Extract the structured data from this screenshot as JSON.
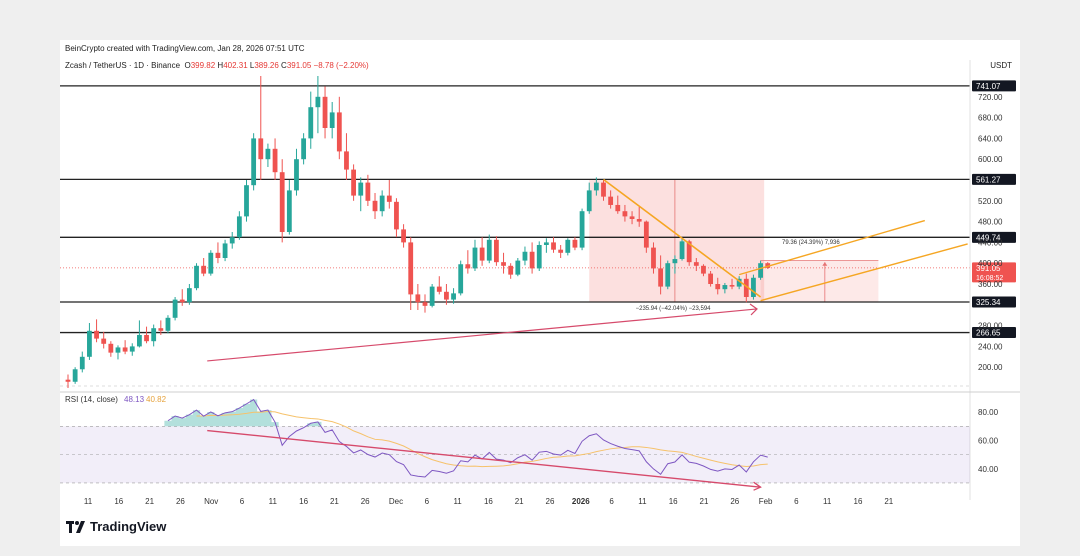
{
  "header": {
    "attribution": "BeinCrypto created with TradingView.com, Jan 28, 2026 07:51 UTC",
    "symbol": "Zcash / TetherUS · 1D · Binance",
    "o_label": "O",
    "o_value": "399.82",
    "h_label": "H",
    "h_value": "402.31",
    "l_label": "L",
    "l_value": "389.26",
    "c_label": "C",
    "c_value": "391.05",
    "change": "−8.78 (−2.20%)",
    "currency": "USDT"
  },
  "footer": {
    "brand": "TradingView"
  },
  "colors": {
    "up": "#26a69a",
    "down": "#ef5350",
    "level": "#222222",
    "channel": "#f5a623",
    "trend": "#d64a6b",
    "rsi": "#7e57c2",
    "rsi_ma": "#f6c26b"
  },
  "chart_data": {
    "type": "candlestick",
    "price_axis": {
      "ticks": [
        "200.00",
        "240.00",
        "280.00",
        "360.00",
        "400.00",
        "440.00",
        "480.00",
        "520.00",
        "600.00",
        "640.00",
        "680.00",
        "720.00"
      ],
      "range": [
        160,
        760
      ]
    },
    "time_axis": [
      "11",
      "16",
      "21",
      "26",
      "Nov",
      "6",
      "11",
      "16",
      "21",
      "26",
      "Dec",
      "6",
      "11",
      "16",
      "21",
      "26",
      "2026",
      "6",
      "11",
      "16",
      "21",
      "26",
      "Feb",
      "6",
      "11",
      "16",
      "21"
    ],
    "levels": [
      {
        "value": 741.07,
        "label": "741.07"
      },
      {
        "value": 561.27,
        "label": "561.27"
      },
      {
        "value": 449.74,
        "label": "449.74"
      },
      {
        "value": 325.34,
        "label": "325.34"
      },
      {
        "value": 266.65,
        "label": "266.65"
      }
    ],
    "last_price": {
      "value": 391.05,
      "label": "391.05",
      "countdown": "16:08:52"
    },
    "annotations": {
      "drop": "−235.94 (−42.04%) −23,594",
      "rise": "79.36 (24.39%) 7,936"
    },
    "candles": [
      [
        176,
        186,
        160,
        172
      ],
      [
        172,
        200,
        168,
        196
      ],
      [
        196,
        230,
        190,
        220
      ],
      [
        220,
        285,
        214,
        270
      ],
      [
        270,
        292,
        248,
        255
      ],
      [
        255,
        268,
        236,
        245
      ],
      [
        245,
        250,
        220,
        228
      ],
      [
        228,
        242,
        215,
        238
      ],
      [
        238,
        252,
        225,
        230
      ],
      [
        230,
        246,
        222,
        240
      ],
      [
        240,
        290,
        238,
        262
      ],
      [
        262,
        278,
        246,
        250
      ],
      [
        250,
        282,
        240,
        275
      ],
      [
        275,
        290,
        262,
        270
      ],
      [
        270,
        300,
        265,
        295
      ],
      [
        295,
        335,
        290,
        330
      ],
      [
        330,
        350,
        318,
        325
      ],
      [
        325,
        360,
        320,
        352
      ],
      [
        352,
        400,
        348,
        395
      ],
      [
        395,
        410,
        375,
        380
      ],
      [
        380,
        425,
        376,
        420
      ],
      [
        420,
        440,
        400,
        410
      ],
      [
        410,
        445,
        404,
        438
      ],
      [
        438,
        460,
        428,
        450
      ],
      [
        450,
        500,
        445,
        490
      ],
      [
        490,
        560,
        480,
        550
      ],
      [
        550,
        650,
        540,
        640
      ],
      [
        640,
        760,
        560,
        600
      ],
      [
        600,
        630,
        585,
        620
      ],
      [
        620,
        640,
        560,
        575
      ],
      [
        575,
        600,
        440,
        460
      ],
      [
        460,
        560,
        455,
        540
      ],
      [
        540,
        620,
        530,
        600
      ],
      [
        600,
        650,
        590,
        640
      ],
      [
        640,
        730,
        620,
        700
      ],
      [
        700,
        760,
        650,
        720
      ],
      [
        720,
        740,
        640,
        660
      ],
      [
        660,
        710,
        640,
        690
      ],
      [
        690,
        720,
        600,
        615
      ],
      [
        615,
        650,
        560,
        580
      ],
      [
        580,
        590,
        520,
        530
      ],
      [
        530,
        565,
        500,
        555
      ],
      [
        555,
        570,
        510,
        520
      ],
      [
        520,
        535,
        485,
        500
      ],
      [
        500,
        540,
        490,
        530
      ],
      [
        530,
        560,
        505,
        518
      ],
      [
        518,
        525,
        450,
        465
      ],
      [
        465,
        475,
        430,
        440
      ],
      [
        440,
        450,
        310,
        340
      ],
      [
        340,
        360,
        310,
        325
      ],
      [
        325,
        340,
        305,
        318
      ],
      [
        318,
        360,
        315,
        355
      ],
      [
        355,
        375,
        340,
        345
      ],
      [
        345,
        360,
        320,
        330
      ],
      [
        330,
        352,
        322,
        342
      ],
      [
        342,
        405,
        338,
        398
      ],
      [
        398,
        425,
        380,
        390
      ],
      [
        390,
        445,
        385,
        430
      ],
      [
        430,
        450,
        395,
        405
      ],
      [
        405,
        455,
        400,
        445
      ],
      [
        445,
        452,
        395,
        402
      ],
      [
        402,
        420,
        380,
        395
      ],
      [
        395,
        400,
        370,
        378
      ],
      [
        378,
        410,
        375,
        405
      ],
      [
        405,
        432,
        396,
        422
      ],
      [
        422,
        440,
        380,
        390
      ],
      [
        390,
        442,
        385,
        435
      ],
      [
        435,
        448,
        420,
        440
      ],
      [
        440,
        450,
        420,
        426
      ],
      [
        426,
        435,
        410,
        420
      ],
      [
        420,
        448,
        415,
        445
      ],
      [
        445,
        450,
        425,
        430
      ],
      [
        430,
        505,
        425,
        500
      ],
      [
        500,
        555,
        495,
        540
      ],
      [
        540,
        565,
        530,
        555
      ],
      [
        555,
        560,
        520,
        528
      ],
      [
        528,
        540,
        505,
        512
      ],
      [
        512,
        530,
        495,
        500
      ],
      [
        500,
        512,
        480,
        490
      ],
      [
        490,
        500,
        475,
        485
      ],
      [
        485,
        508,
        470,
        480
      ],
      [
        480,
        482,
        420,
        430
      ],
      [
        430,
        440,
        380,
        390
      ],
      [
        390,
        415,
        340,
        355
      ],
      [
        355,
        405,
        350,
        400
      ],
      [
        400,
        415,
        380,
        408
      ],
      [
        408,
        448,
        405,
        442
      ],
      [
        442,
        445,
        395,
        402
      ],
      [
        402,
        410,
        385,
        395
      ],
      [
        395,
        398,
        375,
        380
      ],
      [
        380,
        385,
        355,
        360
      ],
      [
        360,
        372,
        340,
        350
      ],
      [
        350,
        362,
        342,
        358
      ],
      [
        358,
        370,
        350,
        355
      ],
      [
        355,
        375,
        350,
        370
      ],
      [
        370,
        380,
        325,
        335
      ],
      [
        335,
        378,
        330,
        372
      ],
      [
        372,
        405,
        368,
        400
      ],
      [
        400,
        402,
        389,
        391
      ]
    ],
    "rsi": {
      "label": "RSI (14, close)",
      "value": "48.13",
      "ma_value": "40.82",
      "ticks": [
        "40.00",
        "60.00",
        "80.00"
      ],
      "range": [
        25,
        90
      ],
      "band": [
        30,
        70
      ]
    }
  }
}
